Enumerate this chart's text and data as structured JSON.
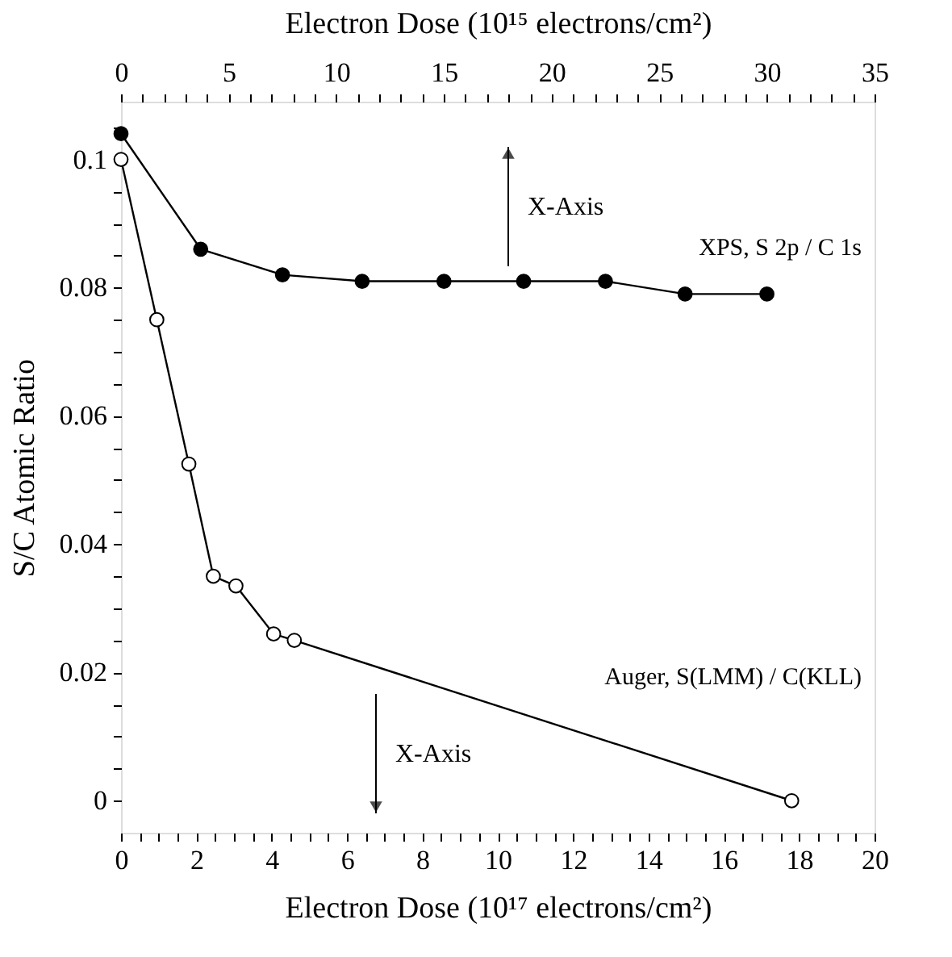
{
  "chart_data": {
    "type": "line",
    "xlabel": "Electron Dose (10¹⁷ electrons/cm²)",
    "x2label": "Electron Dose (10¹⁵ electrons/cm²)",
    "ylabel": "S/C Atomic Ratio",
    "xlim": [
      0,
      20
    ],
    "xticks": [
      0,
      {
        "value": 0.5,
        "label": null
      },
      {
        "value": 1,
        "label": null
      },
      {
        "value": 1.5,
        "label": null
      },
      2,
      {
        "value": 2.5,
        "label": null
      },
      {
        "value": 3,
        "label": null
      },
      {
        "value": 3.5,
        "label": null
      },
      4,
      {
        "value": 4.5,
        "label": null
      },
      {
        "value": 5,
        "label": null
      },
      {
        "value": 5.5,
        "label": null
      },
      6,
      {
        "value": 6.5,
        "label": null
      },
      {
        "value": 7,
        "label": null
      },
      {
        "value": 7.5,
        "label": null
      },
      8,
      {
        "value": 8.5,
        "label": null
      },
      {
        "value": 9,
        "label": null
      },
      {
        "value": 9.5,
        "label": null
      },
      10,
      {
        "value": 10.5,
        "label": null
      },
      {
        "value": 11,
        "label": null
      },
      {
        "value": 11.5,
        "label": null
      },
      12,
      {
        "value": 12.5,
        "label": null
      },
      {
        "value": 13,
        "label": null
      },
      {
        "value": 13.5,
        "label": null
      },
      14,
      {
        "value": 14.5,
        "label": null
      },
      {
        "value": 15,
        "label": null
      },
      {
        "value": 15.5,
        "label": null
      },
      16,
      {
        "value": 16.5,
        "label": null
      },
      {
        "value": 17,
        "label": null
      },
      {
        "value": 17.5,
        "label": null
      },
      18,
      {
        "value": 18.5,
        "label": null
      },
      {
        "value": 19,
        "label": null
      },
      {
        "value": 19.5,
        "label": null
      },
      20
    ],
    "x2lim": [
      0,
      35
    ],
    "x2ticks": [
      0,
      {
        "value": 1,
        "label": null
      },
      {
        "value": 2,
        "label": null
      },
      {
        "value": 3,
        "label": null
      },
      {
        "value": 4,
        "label": null
      },
      5,
      {
        "value": 6,
        "label": null
      },
      {
        "value": 7,
        "label": null
      },
      {
        "value": 8,
        "label": null
      },
      {
        "value": 9,
        "label": null
      },
      10,
      {
        "value": 11,
        "label": null
      },
      {
        "value": 12,
        "label": null
      },
      {
        "value": 13,
        "label": null
      },
      {
        "value": 14,
        "label": null
      },
      15,
      {
        "value": 16,
        "label": null
      },
      {
        "value": 17,
        "label": null
      },
      {
        "value": 18,
        "label": null
      },
      {
        "value": 19,
        "label": null
      },
      20,
      {
        "value": 21,
        "label": null
      },
      {
        "value": 22,
        "label": null
      },
      {
        "value": 23,
        "label": null
      },
      {
        "value": 24,
        "label": null
      },
      25,
      {
        "value": 26,
        "label": null
      },
      {
        "value": 27,
        "label": null
      },
      {
        "value": 28,
        "label": null
      },
      {
        "value": 29,
        "label": null
      },
      30,
      {
        "value": 31,
        "label": null
      },
      {
        "value": 32,
        "label": null
      },
      {
        "value": 33,
        "label": null
      },
      {
        "value": 34,
        "label": null
      },
      35
    ],
    "ylim": [
      -0.005,
      0.109
    ],
    "yticks": [
      0,
      {
        "value": 0.005,
        "label": null
      },
      {
        "value": 0.01,
        "label": null
      },
      {
        "value": 0.015,
        "label": null
      },
      0.02,
      {
        "value": 0.025,
        "label": null
      },
      {
        "value": 0.03,
        "label": null
      },
      {
        "value": 0.035,
        "label": null
      },
      0.04,
      {
        "value": 0.045,
        "label": null
      },
      {
        "value": 0.05,
        "label": null
      },
      {
        "value": 0.055,
        "label": null
      },
      0.06,
      {
        "value": 0.065,
        "label": null
      },
      {
        "value": 0.07,
        "label": null
      },
      {
        "value": 0.075,
        "label": null
      },
      0.08,
      {
        "value": 0.085,
        "label": null
      },
      {
        "value": 0.09,
        "label": null
      },
      {
        "value": 0.095,
        "label": null
      },
      0.1,
      {
        "value": 0.105,
        "label": null
      }
    ],
    "grid": false,
    "marker": "circle",
    "line_style": "solid",
    "series": [
      {
        "name": "XPS, S 2p / C 1s",
        "color": "#000000",
        "axis": "x2",
        "x": [
          0,
          3.7,
          7.5,
          11.2,
          15,
          18.7,
          22.5,
          26.2,
          30
        ],
        "values": [
          0.104,
          0.086,
          0.082,
          0.081,
          0.081,
          0.081,
          0.081,
          0.079,
          0.079
        ]
      },
      {
        "name": "Auger, S(LMM) / C(KLL)",
        "color": "#000000",
        "x": [
          0,
          0.95,
          1.8,
          2.45,
          3.05,
          4.05,
          4.6,
          17.8
        ],
        "values": [
          0.1,
          0.075,
          0.0525,
          0.035,
          0.0335,
          0.026,
          0.025,
          0
        ]
      }
    ],
    "annotations": [
      "X-Axis",
      "X-Axis"
    ]
  }
}
